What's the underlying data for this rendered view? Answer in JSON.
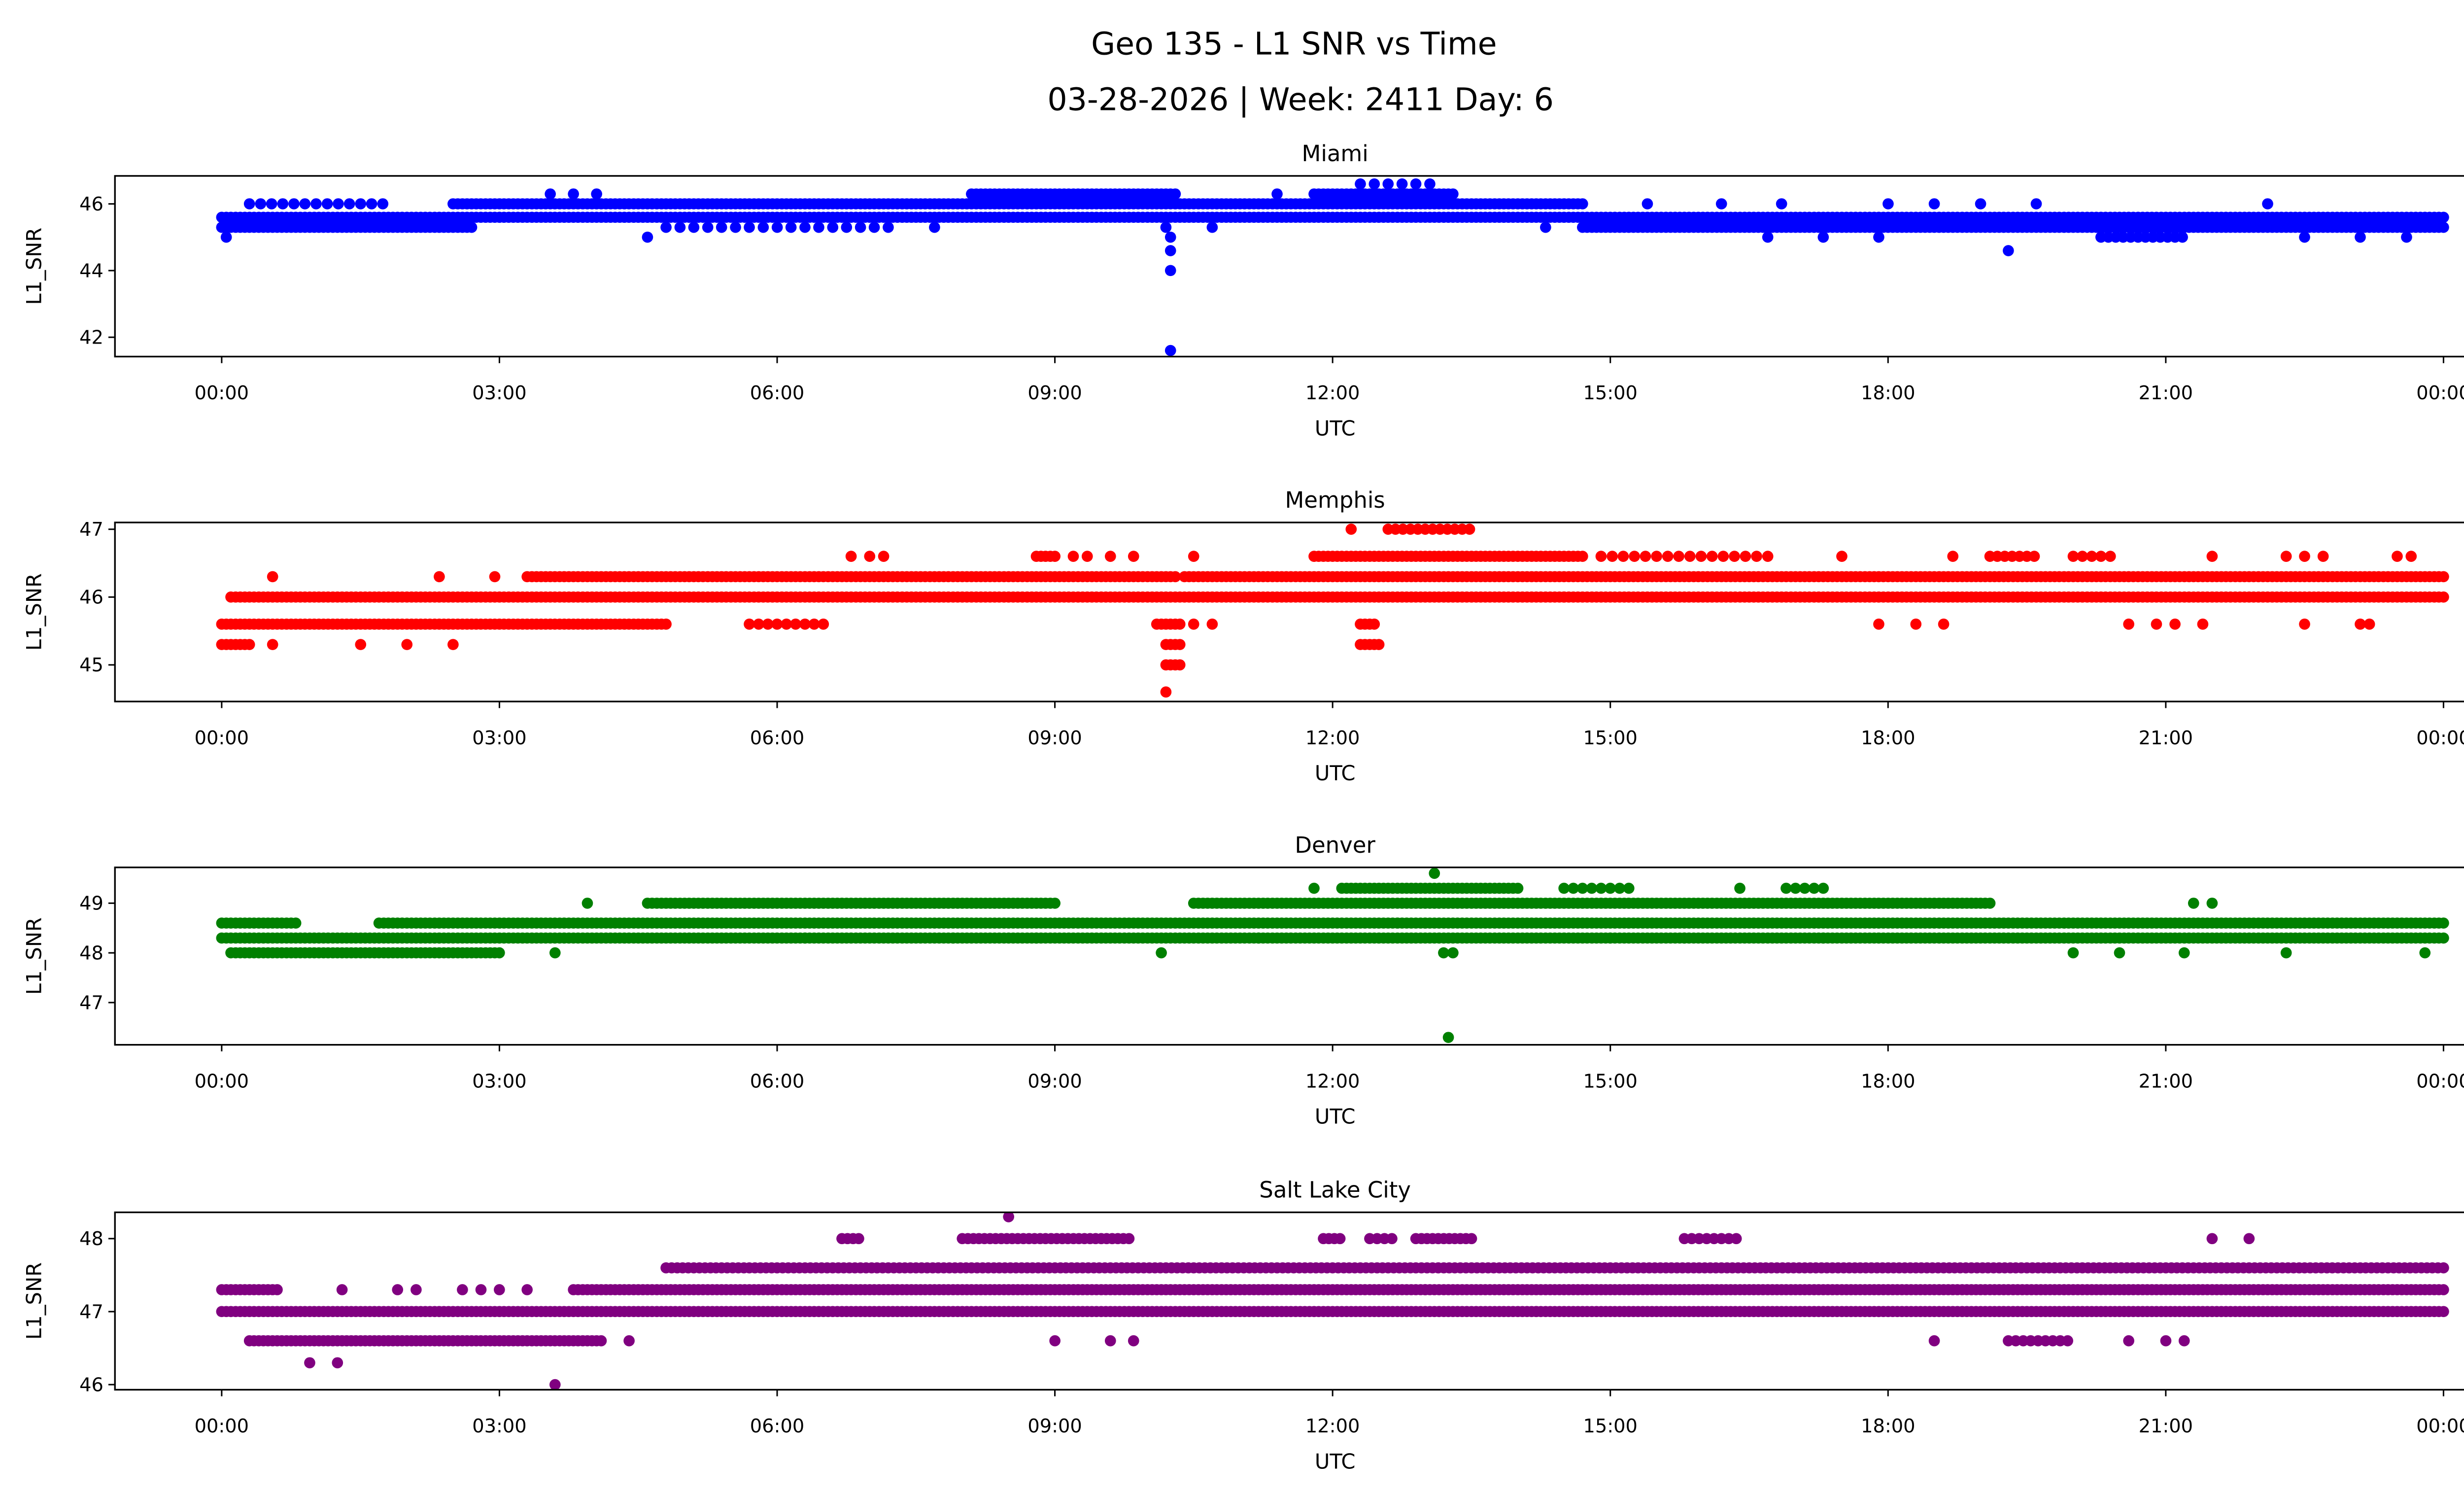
{
  "chart_data": {
    "type": "scatter",
    "title": "Geo 135 - L1 SNR vs Time",
    "subtitle": "03-28-2026 | Week: 2411 Day: 6",
    "x_ticks": [
      "00:00",
      "03:00",
      "06:00",
      "09:00",
      "12:00",
      "15:00",
      "18:00",
      "21:00",
      "00:00"
    ],
    "x_tick_hours": [
      0,
      3,
      6,
      9,
      12,
      15,
      18,
      21,
      24
    ],
    "xlim_hours": [
      -1.17,
      25.2
    ],
    "panels": [
      {
        "name": "Miami",
        "xlabel": "UTC",
        "ylabel": "L1_SNR",
        "color": "#0000ff",
        "ylim": [
          41.42,
          46.84
        ],
        "yticks": [
          42,
          44,
          46
        ],
        "segments": [
          [
            45.6,
            0,
            24,
            0.05
          ],
          [
            45.3,
            0,
            2.7,
            0.05
          ],
          [
            45.3,
            4.8,
            7.2,
            0.15
          ],
          [
            45.3,
            14.7,
            24,
            0.05
          ],
          [
            46.0,
            0.3,
            1.8,
            0.12
          ],
          [
            46.0,
            2.5,
            14.7,
            0.05
          ],
          [
            46.3,
            8.1,
            10.3,
            0.05
          ],
          [
            46.3,
            11.8,
            13.3,
            0.05
          ],
          [
            46.6,
            12.3,
            13.1,
            0.15
          ],
          [
            45.0,
            20.3,
            21.2,
            0.08
          ]
        ],
        "points": [
          [
            10.25,
            41.6
          ],
          [
            10.25,
            44.0
          ],
          [
            10.25,
            44.6
          ],
          [
            10.25,
            45.0
          ],
          [
            10.2,
            45.3
          ],
          [
            4.6,
            45.0
          ],
          [
            0.05,
            45.0
          ],
          [
            19.3,
            44.6
          ],
          [
            3.55,
            46.3
          ],
          [
            3.8,
            46.3
          ],
          [
            4.05,
            46.3
          ],
          [
            11.4,
            46.3
          ],
          [
            15.4,
            46.0
          ],
          [
            16.2,
            46.0
          ],
          [
            16.85,
            46.0
          ],
          [
            18.0,
            46.0
          ],
          [
            18.5,
            46.0
          ],
          [
            19.0,
            46.0
          ],
          [
            19.6,
            46.0
          ],
          [
            22.1,
            46.0
          ],
          [
            16.7,
            45.0
          ],
          [
            17.3,
            45.0
          ],
          [
            17.9,
            45.0
          ],
          [
            22.5,
            45.0
          ],
          [
            23.1,
            45.0
          ],
          [
            23.6,
            45.0
          ],
          [
            14.3,
            45.3
          ],
          [
            10.7,
            45.3
          ],
          [
            7.7,
            45.3
          ]
        ]
      },
      {
        "name": "Memphis",
        "xlabel": "UTC",
        "ylabel": "L1_SNR",
        "color": "#ff0000",
        "ylim": [
          44.46,
          47.1
        ],
        "yticks": [
          45,
          46,
          47
        ],
        "segments": [
          [
            45.6,
            0,
            4.8,
            0.05
          ],
          [
            45.6,
            5.7,
            6.5,
            0.1
          ],
          [
            45.6,
            10.1,
            10.35,
            0.05
          ],
          [
            45.6,
            12.3,
            12.45,
            0.05
          ],
          [
            45.3,
            0,
            0.3,
            0.05
          ],
          [
            45.3,
            10.2,
            10.35,
            0.05
          ],
          [
            45.3,
            12.3,
            12.5,
            0.05
          ],
          [
            45.0,
            10.2,
            10.35,
            0.05
          ],
          [
            46.0,
            0.1,
            24,
            0.05
          ],
          [
            46.3,
            3.3,
            10.3,
            0.05
          ],
          [
            46.3,
            10.4,
            24,
            0.05
          ],
          [
            46.6,
            8.8,
            9.0,
            0.05
          ],
          [
            46.6,
            11.8,
            14.7,
            0.05
          ],
          [
            46.6,
            14.9,
            16.8,
            0.12
          ],
          [
            46.6,
            19.1,
            19.6,
            0.08
          ],
          [
            46.6,
            20.0,
            20.4,
            0.1
          ],
          [
            47.0,
            12.6,
            13.5,
            0.08
          ]
        ],
        "points": [
          [
            10.2,
            44.6
          ],
          [
            0.55,
            45.3
          ],
          [
            1.5,
            45.3
          ],
          [
            2.0,
            45.3
          ],
          [
            2.5,
            45.3
          ],
          [
            0.55,
            46.3
          ],
          [
            2.35,
            46.3
          ],
          [
            2.95,
            46.3
          ],
          [
            6.8,
            46.6
          ],
          [
            7.0,
            46.6
          ],
          [
            7.15,
            46.6
          ],
          [
            9.2,
            46.6
          ],
          [
            9.35,
            46.6
          ],
          [
            9.6,
            46.6
          ],
          [
            9.85,
            46.6
          ],
          [
            10.5,
            46.6
          ],
          [
            17.5,
            46.6
          ],
          [
            18.7,
            46.6
          ],
          [
            21.5,
            46.6
          ],
          [
            22.3,
            46.6
          ],
          [
            22.5,
            46.6
          ],
          [
            22.7,
            46.6
          ],
          [
            23.5,
            46.6
          ],
          [
            23.65,
            46.6
          ],
          [
            12.2,
            47.0
          ],
          [
            10.5,
            45.6
          ],
          [
            10.7,
            45.6
          ],
          [
            17.9,
            45.6
          ],
          [
            18.3,
            45.6
          ],
          [
            18.6,
            45.6
          ],
          [
            20.6,
            45.6
          ],
          [
            20.9,
            45.6
          ],
          [
            21.1,
            45.6
          ],
          [
            21.4,
            45.6
          ],
          [
            22.5,
            45.6
          ],
          [
            23.1,
            45.6
          ],
          [
            23.2,
            45.6
          ],
          [
            14.5,
            46.0
          ]
        ]
      },
      {
        "name": "Denver",
        "xlabel": "UTC",
        "ylabel": "L1_SNR",
        "color": "#008000",
        "ylim": [
          46.15,
          49.72
        ],
        "yticks": [
          47,
          48,
          49
        ],
        "segments": [
          [
            48.0,
            0.1,
            3.0,
            0.05
          ],
          [
            48.3,
            0,
            24,
            0.05
          ],
          [
            48.6,
            0,
            0.8,
            0.05
          ],
          [
            48.6,
            1.7,
            24,
            0.05
          ],
          [
            49.0,
            4.6,
            9.0,
            0.05
          ],
          [
            49.0,
            10.5,
            19.1,
            0.05
          ],
          [
            49.3,
            12.1,
            14.0,
            0.05
          ],
          [
            49.3,
            14.5,
            15.2,
            0.1
          ],
          [
            49.3,
            16.9,
            17.3,
            0.1
          ]
        ],
        "points": [
          [
            13.1,
            49.6
          ],
          [
            13.25,
            46.3
          ],
          [
            13.2,
            48.0
          ],
          [
            13.3,
            48.0
          ],
          [
            3.6,
            48.0
          ],
          [
            3.95,
            49.0
          ],
          [
            11.8,
            49.3
          ],
          [
            16.4,
            49.3
          ],
          [
            10.15,
            48.0
          ],
          [
            20.0,
            48.0
          ],
          [
            20.5,
            48.0
          ],
          [
            21.2,
            48.0
          ],
          [
            22.3,
            48.0
          ],
          [
            23.8,
            48.0
          ],
          [
            21.3,
            49.0
          ],
          [
            21.5,
            49.0
          ],
          [
            7.9,
            48.3
          ],
          [
            8.8,
            48.3
          ],
          [
            6.3,
            48.3
          ],
          [
            15.0,
            48.3
          ],
          [
            15.8,
            48.3
          ],
          [
            17.3,
            48.3
          ],
          [
            11.2,
            48.3
          ],
          [
            12.7,
            48.6
          ],
          [
            13.0,
            48.6
          ]
        ]
      },
      {
        "name": "Salt Lake City",
        "xlabel": "UTC",
        "ylabel": "L1_SNR",
        "color": "#800080",
        "ylim": [
          45.93,
          48.36
        ],
        "yticks": [
          46,
          47,
          48
        ],
        "segments": [
          [
            47.0,
            0,
            24,
            0.05
          ],
          [
            46.6,
            0.3,
            4.1,
            0.05
          ],
          [
            46.6,
            19.3,
            20.0,
            0.08
          ],
          [
            47.3,
            0,
            0.6,
            0.05
          ],
          [
            47.3,
            3.8,
            24,
            0.05
          ],
          [
            47.6,
            4.8,
            24,
            0.06
          ],
          [
            48.0,
            8.0,
            9.8,
            0.06
          ],
          [
            48.0,
            12.9,
            13.5,
            0.06
          ],
          [
            48.0,
            15.8,
            16.4,
            0.08
          ],
          [
            48.0,
            6.7,
            6.9,
            0.06
          ],
          [
            48.0,
            11.9,
            12.1,
            0.06
          ],
          [
            48.0,
            12.4,
            12.7,
            0.08
          ]
        ],
        "points": [
          [
            8.5,
            48.3
          ],
          [
            0.95,
            46.3
          ],
          [
            1.25,
            46.3
          ],
          [
            3.6,
            46.0
          ],
          [
            4.4,
            46.6
          ],
          [
            18.5,
            46.6
          ],
          [
            20.6,
            46.6
          ],
          [
            21.0,
            46.6
          ],
          [
            21.2,
            46.6
          ],
          [
            9.0,
            46.6
          ],
          [
            9.6,
            46.6
          ],
          [
            9.85,
            46.6
          ],
          [
            21.5,
            48.0
          ],
          [
            21.9,
            48.0
          ],
          [
            1.9,
            47.3
          ],
          [
            2.1,
            47.3
          ],
          [
            2.6,
            47.3
          ],
          [
            2.8,
            47.3
          ],
          [
            3.0,
            47.3
          ],
          [
            3.3,
            47.3
          ],
          [
            1.3,
            47.3
          ],
          [
            13.0,
            47.3
          ],
          [
            14.2,
            47.0
          ]
        ]
      }
    ]
  }
}
